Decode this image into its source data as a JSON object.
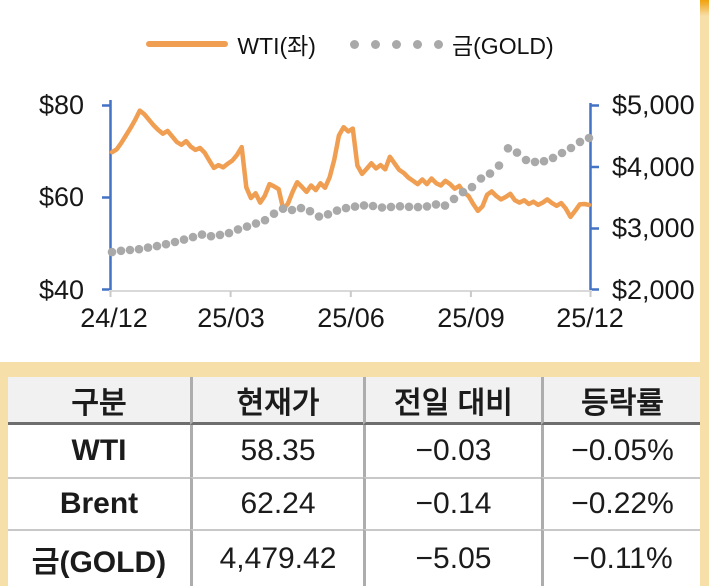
{
  "legend_note": "dual-axis commodity price chart, WTI on left axis, Gold on right axis",
  "chart_data": {
    "type": "line",
    "title": "",
    "x_ticks": [
      "24/12",
      "25/03",
      "25/06",
      "25/09",
      "25/12"
    ],
    "left_axis": {
      "min": 40,
      "max": 80,
      "ticks": [
        "$80",
        "$60",
        "$40"
      ],
      "unit": "$"
    },
    "right_axis": {
      "min": 2000,
      "max": 5000,
      "ticks": [
        "$5,000",
        "$4,000",
        "$3,000",
        "$2,000"
      ],
      "unit": "$"
    },
    "grid": "off",
    "legend_position": "top-center",
    "series": [
      {
        "name": "WTI(좌)",
        "axis": "left",
        "style": "line",
        "color": "#F09E52",
        "values": [
          69.8,
          70.4,
          71.8,
          73.4,
          75.0,
          76.8,
          78.8,
          78.0,
          76.8,
          75.6,
          74.6,
          73.8,
          74.4,
          73.2,
          72.0,
          71.4,
          72.2,
          71.0,
          70.3,
          70.7,
          69.7,
          68.0,
          66.4,
          67.0,
          66.5,
          67.3,
          68.0,
          69.2,
          70.9,
          62.2,
          59.9,
          60.9,
          58.9,
          60.4,
          62.9,
          62.4,
          61.8,
          57.4,
          58.7,
          61.2,
          63.3,
          62.3,
          61.2,
          62.6,
          61.6,
          63.1,
          62.1,
          64.4,
          68.2,
          73.4,
          75.2,
          74.3,
          74.9,
          66.9,
          65.1,
          66.2,
          67.4,
          66.3,
          67.0,
          66.1,
          68.8,
          67.4,
          66.0,
          65.3,
          64.3,
          63.6,
          62.9,
          63.9,
          62.9,
          64.1,
          63.1,
          62.6,
          63.6,
          62.9,
          61.9,
          62.5,
          61.1,
          60.3,
          58.6,
          57.1,
          58.1,
          60.6,
          61.3,
          60.3,
          59.6,
          60.1,
          60.8,
          59.4,
          58.9,
          59.4,
          58.6,
          59.1,
          58.4,
          58.9,
          59.6,
          58.8,
          58.2,
          58.8,
          57.6,
          55.8,
          57.1,
          58.5,
          58.6,
          58.4
        ]
      },
      {
        "name": "금(GOLD)",
        "axis": "right",
        "style": "dots",
        "color": "#A9A9A9",
        "values": [
          2615,
          2635,
          2648,
          2662,
          2688,
          2712,
          2742,
          2778,
          2818,
          2858,
          2898,
          2872,
          2893,
          2922,
          2982,
          3028,
          3078,
          3132,
          3238,
          3318,
          3298,
          3328,
          3278,
          3192,
          3228,
          3288,
          3328,
          3352,
          3372,
          3362,
          3338,
          3348,
          3358,
          3350,
          3344,
          3356,
          3388,
          3368,
          3478,
          3588,
          3668,
          3808,
          3888,
          4018,
          4298,
          4228,
          4108,
          4078,
          4088,
          4142,
          4222,
          4302,
          4402,
          4465
        ]
      }
    ]
  },
  "table": {
    "headers": [
      "구분",
      "현재가",
      "전일 대비",
      "등락률"
    ],
    "rows": [
      {
        "name": "WTI",
        "price": "58.35",
        "change": "−0.03",
        "pct": "−0.05%"
      },
      {
        "name": "Brent",
        "price": "62.24",
        "change": "−0.14",
        "pct": "−0.22%"
      },
      {
        "name": "금(GOLD)",
        "price": "4,479.42",
        "change": "−5.05",
        "pct": "−0.11%"
      }
    ]
  },
  "colors": {
    "wti_line": "#F09E52",
    "gold_dots": "#A9A9A9",
    "value_axis": "#4472C4",
    "category_axis": "#D9D9D9",
    "page_accent": "#F7DFA9",
    "accent_cap": "#F0A30A",
    "header_bg": "#F1F1F1",
    "header_border": "#6E6E6E",
    "grid_divider": "#ADADAD"
  }
}
